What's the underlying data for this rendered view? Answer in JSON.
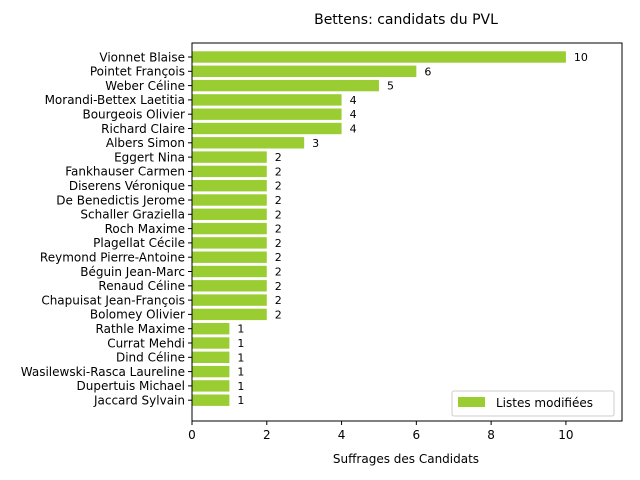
{
  "chart_data": {
    "type": "bar",
    "orientation": "horizontal",
    "title": "Bettens: candidats du PVL",
    "xlabel": "Suffrages des Candidats",
    "ylabel": "",
    "xlim": [
      0,
      11.5
    ],
    "xticks": [
      0,
      2,
      4,
      6,
      8,
      10
    ],
    "grid": false,
    "legend_position": "lower-right",
    "categories": [
      "Vionnet Blaise",
      "Pointet François",
      "Weber Céline",
      "Morandi-Bettex Laetitia",
      "Bourgeois Olivier",
      "Richard Claire",
      "Albers Simon",
      "Eggert Nina",
      "Fankhauser Carmen",
      "Diserens Véronique",
      "De Benedictis Jerome",
      "Schaller Graziella",
      "Roch Maxime",
      "Plagellat Cécile",
      "Reymond Pierre-Antoine",
      "Béguin Jean-Marc",
      "Renaud Céline",
      "Chapuisat Jean-François",
      "Bolomey Olivier",
      "Rathle Maxime",
      "Currat Mehdi",
      "Dind Céline",
      "Wasilewski-Rasca Laureline",
      "Dupertuis Michael",
      "Jaccard Sylvain"
    ],
    "series": [
      {
        "name": "Listes modifiées",
        "color": "#9acd32",
        "values": [
          10,
          6,
          5,
          4,
          4,
          4,
          3,
          2,
          2,
          2,
          2,
          2,
          2,
          2,
          2,
          2,
          2,
          2,
          2,
          1,
          1,
          1,
          1,
          1,
          1
        ]
      }
    ]
  }
}
